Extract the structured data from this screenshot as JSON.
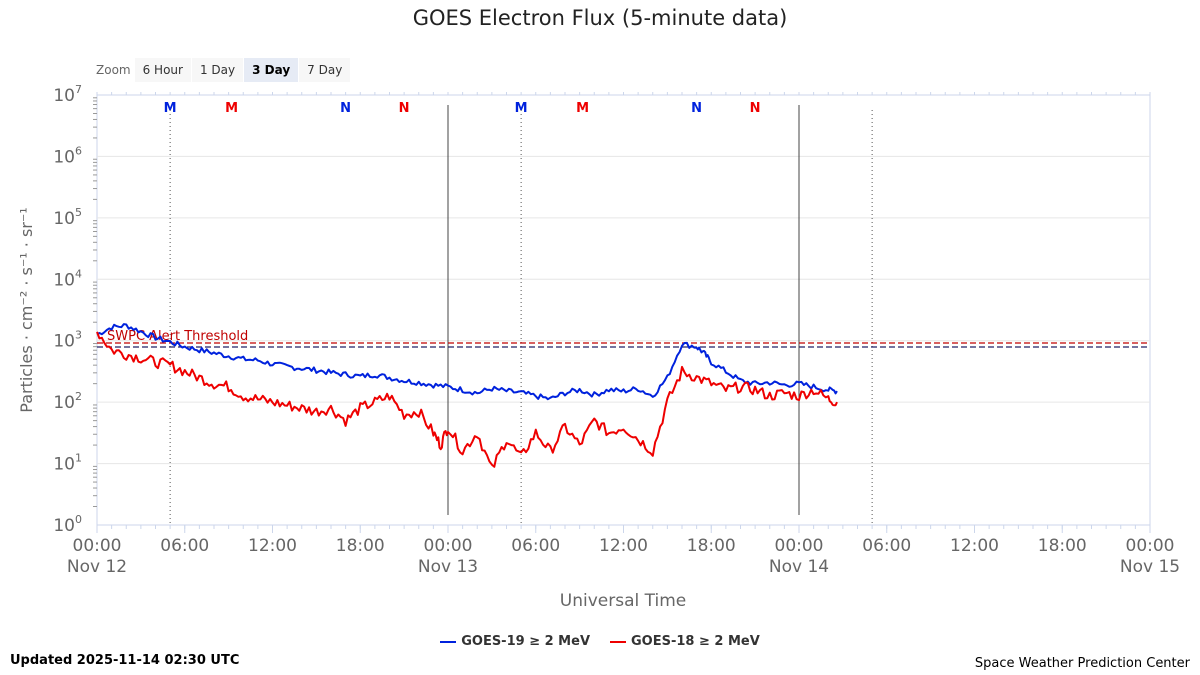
{
  "chart_data": {
    "type": "line",
    "title": "GOES Electron Flux (5-minute data)",
    "xlabel": "Universal Time",
    "ylabel": "Particles · cm⁻² · s⁻¹ · sr⁻¹",
    "yscale": "log",
    "ylim_exponent": [
      0,
      7
    ],
    "y_ticks": [
      {
        "base": "10",
        "exp": "0"
      },
      {
        "base": "10",
        "exp": "1"
      },
      {
        "base": "10",
        "exp": "2"
      },
      {
        "base": "10",
        "exp": "3"
      },
      {
        "base": "10",
        "exp": "4"
      },
      {
        "base": "10",
        "exp": "5"
      },
      {
        "base": "10",
        "exp": "6"
      },
      {
        "base": "10",
        "exp": "7"
      }
    ],
    "x_range_hours": [
      0,
      72
    ],
    "x_ticks": [
      {
        "hour": 0,
        "label": "00:00",
        "date": "Nov 12"
      },
      {
        "hour": 6,
        "label": "06:00",
        "date": ""
      },
      {
        "hour": 12,
        "label": "12:00",
        "date": ""
      },
      {
        "hour": 18,
        "label": "18:00",
        "date": ""
      },
      {
        "hour": 24,
        "label": "00:00",
        "date": "Nov 13"
      },
      {
        "hour": 30,
        "label": "06:00",
        "date": ""
      },
      {
        "hour": 36,
        "label": "12:00",
        "date": ""
      },
      {
        "hour": 42,
        "label": "18:00",
        "date": ""
      },
      {
        "hour": 48,
        "label": "00:00",
        "date": "Nov 14"
      },
      {
        "hour": 54,
        "label": "06:00",
        "date": ""
      },
      {
        "hour": 60,
        "label": "12:00",
        "date": ""
      },
      {
        "hour": 66,
        "label": "18:00",
        "date": ""
      },
      {
        "hour": 72,
        "label": "00:00",
        "date": "Nov 15"
      }
    ],
    "day_boundaries_hours": [
      24,
      48
    ],
    "dotted_lines_hours": [
      5,
      29,
      53
    ],
    "threshold": {
      "label": "SWPC Alert Threshold",
      "value_exponent": 2.93
    },
    "markers": [
      {
        "letter": "M",
        "hour": 5.0,
        "color": "#0022dd"
      },
      {
        "letter": "M",
        "hour": 9.2,
        "color": "#ee0000"
      },
      {
        "letter": "N",
        "hour": 17.0,
        "color": "#0022dd"
      },
      {
        "letter": "N",
        "hour": 21.0,
        "color": "#ee0000"
      },
      {
        "letter": "M",
        "hour": 29.0,
        "color": "#0022dd"
      },
      {
        "letter": "M",
        "hour": 33.2,
        "color": "#ee0000"
      },
      {
        "letter": "N",
        "hour": 41.0,
        "color": "#0022dd"
      },
      {
        "letter": "N",
        "hour": 45.0,
        "color": "#ee0000"
      }
    ],
    "series": [
      {
        "name": "GOES-19 ≥ 2 MeV",
        "color": "#0022dd",
        "points": [
          [
            0,
            3.1
          ],
          [
            1,
            3.22
          ],
          [
            2,
            3.25
          ],
          [
            3,
            3.15
          ],
          [
            4,
            3.05
          ],
          [
            5,
            2.98
          ],
          [
            6,
            2.9
          ],
          [
            7,
            2.85
          ],
          [
            8,
            2.8
          ],
          [
            9,
            2.75
          ],
          [
            10,
            2.7
          ],
          [
            11,
            2.68
          ],
          [
            12,
            2.62
          ],
          [
            13,
            2.58
          ],
          [
            14,
            2.55
          ],
          [
            15,
            2.52
          ],
          [
            16,
            2.48
          ],
          [
            17,
            2.45
          ],
          [
            18,
            2.42
          ],
          [
            19,
            2.45
          ],
          [
            20,
            2.4
          ],
          [
            21,
            2.35
          ],
          [
            22,
            2.32
          ],
          [
            23,
            2.28
          ],
          [
            24,
            2.25
          ],
          [
            25,
            2.2
          ],
          [
            26,
            2.15
          ],
          [
            27,
            2.22
          ],
          [
            28,
            2.18
          ],
          [
            29,
            2.15
          ],
          [
            30,
            2.1
          ],
          [
            31,
            2.05
          ],
          [
            32,
            2.15
          ],
          [
            33,
            2.2
          ],
          [
            34,
            2.12
          ],
          [
            35,
            2.2
          ],
          [
            36,
            2.18
          ],
          [
            37,
            2.22
          ],
          [
            38,
            2.1
          ],
          [
            39,
            2.4
          ],
          [
            40,
            2.95
          ],
          [
            41,
            2.9
          ],
          [
            41.5,
            2.8
          ],
          [
            42,
            2.65
          ],
          [
            43,
            2.5
          ],
          [
            44,
            2.35
          ],
          [
            45,
            2.3
          ],
          [
            46,
            2.32
          ],
          [
            47,
            2.28
          ],
          [
            48,
            2.3
          ],
          [
            49,
            2.25
          ],
          [
            50,
            2.2
          ],
          [
            50.6,
            2.18
          ]
        ]
      },
      {
        "name": "GOES-18 ≥ 2 MeV",
        "color": "#ee0000",
        "points": [
          [
            0,
            3.15
          ],
          [
            1,
            2.85
          ],
          [
            2,
            2.78
          ],
          [
            3,
            2.72
          ],
          [
            4,
            2.65
          ],
          [
            5,
            2.6
          ],
          [
            6,
            2.5
          ],
          [
            7,
            2.4
          ],
          [
            8,
            2.3
          ],
          [
            9,
            2.25
          ],
          [
            10,
            2.1
          ],
          [
            11,
            2.05
          ],
          [
            12,
            2.0
          ],
          [
            13,
            1.95
          ],
          [
            14,
            1.9
          ],
          [
            15,
            1.85
          ],
          [
            16,
            1.9
          ],
          [
            17,
            1.7
          ],
          [
            18,
            1.9
          ],
          [
            19,
            2.0
          ],
          [
            20,
            2.1
          ],
          [
            21,
            1.8
          ],
          [
            22,
            1.85
          ],
          [
            23,
            1.5
          ],
          [
            23.5,
            1.3
          ],
          [
            24,
            1.6
          ],
          [
            25,
            1.2
          ],
          [
            26,
            1.5
          ],
          [
            27,
            0.9
          ],
          [
            28,
            1.4
          ],
          [
            29,
            1.1
          ],
          [
            30,
            1.5
          ],
          [
            31,
            1.2
          ],
          [
            32,
            1.6
          ],
          [
            33,
            1.3
          ],
          [
            34,
            1.7
          ],
          [
            35,
            1.5
          ],
          [
            36,
            1.6
          ],
          [
            37,
            1.4
          ],
          [
            38,
            1.2
          ],
          [
            39,
            2.0
          ],
          [
            40,
            2.5
          ],
          [
            41,
            2.4
          ],
          [
            42,
            2.3
          ],
          [
            43,
            2.2
          ],
          [
            44,
            2.25
          ],
          [
            45,
            2.2
          ],
          [
            46,
            2.1
          ],
          [
            47,
            2.15
          ],
          [
            48,
            2.1
          ],
          [
            49,
            2.2
          ],
          [
            50,
            2.05
          ],
          [
            50.6,
            2.0
          ]
        ]
      }
    ]
  },
  "zoom": {
    "label": "Zoom",
    "buttons": [
      "6 Hour",
      "1 Day",
      "3 Day",
      "7 Day"
    ],
    "active": "3 Day"
  },
  "footer": {
    "updated": "Updated 2025-11-14 02:30 UTC",
    "credit": "Space Weather Prediction Center"
  }
}
